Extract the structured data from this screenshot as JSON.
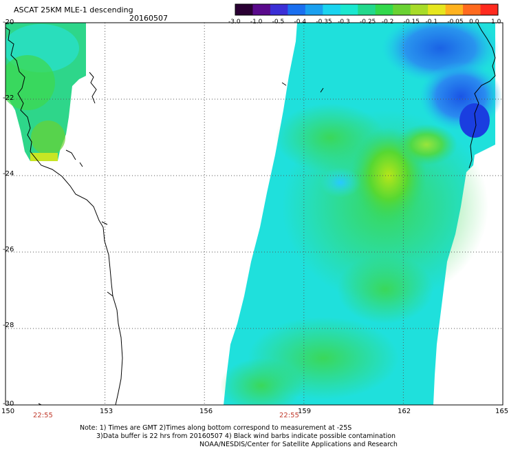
{
  "header": {
    "title": "ASCAT 25KM MLE-1 descending",
    "date": "20160507"
  },
  "colorbar": {
    "ticks": [
      "-3.0",
      "-1.0",
      "-0.5",
      "-0.4",
      "-0.35",
      "-0.3",
      "-0.25",
      "-0.2",
      "-0.15",
      "-0.1",
      "-0.05",
      "0.0",
      "1.0"
    ],
    "colors": [
      "#2a0033",
      "#5a0a8c",
      "#3b2fd6",
      "#1a6ff0",
      "#1aa0f0",
      "#1ad4f0",
      "#1ae8d0",
      "#22d98c",
      "#32d94c",
      "#6ad232",
      "#a8dc28",
      "#e6e61e",
      "#ffb21e",
      "#ff6a1e",
      "#ff2a1e"
    ]
  },
  "axes": {
    "lat_labels": [
      "-20",
      "-22",
      "-24",
      "-26",
      "-28",
      "-30"
    ],
    "lon_labels": [
      "150",
      "153",
      "156",
      "159",
      "162",
      "165"
    ]
  },
  "times": [
    "22:55",
    "22:55"
  ],
  "notes": {
    "line1": "Note: 1) Times are GMT 2)Times along bottom correspond to measurement at -25S",
    "line2": "3)Data buffer is 22 hrs from 20160507 4) Black wind barbs indicate possible contamination",
    "line3": "NOAA/NESDIS/Center for Satellite Applications and Research"
  }
}
